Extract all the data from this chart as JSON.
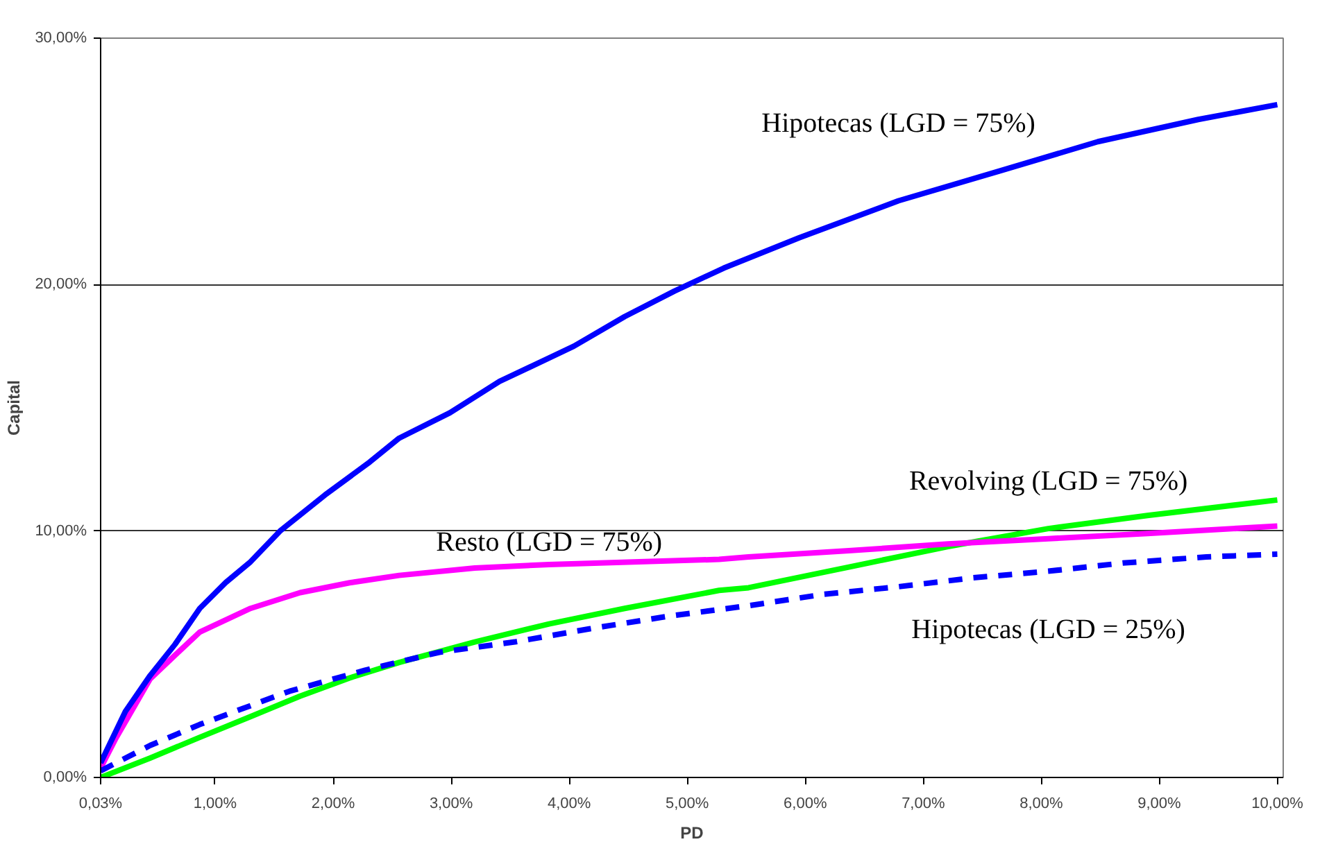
{
  "chart_data": {
    "type": "line",
    "xlabel": "PD",
    "ylabel": "Capital",
    "xlim": [
      0.03,
      10.05
    ],
    "ylim": [
      0,
      30
    ],
    "xticks": [
      {
        "value": 0.03,
        "label": "0,03%"
      },
      {
        "value": 1,
        "label": "1,00%"
      },
      {
        "value": 2,
        "label": "2,00%"
      },
      {
        "value": 3,
        "label": "3,00%"
      },
      {
        "value": 4,
        "label": "4,00%"
      },
      {
        "value": 5,
        "label": "5,00%"
      },
      {
        "value": 6,
        "label": "6,00%"
      },
      {
        "value": 7,
        "label": "7,00%"
      },
      {
        "value": 8,
        "label": "8,00%"
      },
      {
        "value": 9,
        "label": "9,00%"
      },
      {
        "value": 10,
        "label": "10,00%"
      }
    ],
    "yticks": [
      {
        "value": 0,
        "label": "0,00%"
      },
      {
        "value": 10,
        "label": "10,00%"
      },
      {
        "value": 20,
        "label": "20,00%"
      },
      {
        "value": 30,
        "label": "30,00%"
      }
    ],
    "grid": "y",
    "marker": "none",
    "series": [
      {
        "name": "Revolving (LGD = 75%)",
        "color": "#00ff00",
        "line_style": "solid",
        "x": [
          0.03,
          0.45,
          0.87,
          1.3,
          1.72,
          2.14,
          2.56,
          3.2,
          3.83,
          4.47,
          5.27,
          5.52,
          6.37,
          7.21,
          8.06,
          8.9,
          10.0
        ],
        "values": [
          0,
          0.79,
          1.63,
          2.47,
          3.3,
          4.04,
          4.67,
          5.5,
          6.23,
          6.86,
          7.59,
          7.7,
          8.54,
          9.37,
          10.1,
          10.63,
          11.26
        ]
      },
      {
        "name": "Resto (LGD = 75%)",
        "color": "#ff00ff",
        "line_style": "solid",
        "x": [
          0.03,
          0.16,
          0.45,
          0.66,
          0.87,
          1.3,
          1.72,
          2.14,
          2.56,
          3.2,
          3.83,
          5.27,
          5.52,
          6.37,
          7.21,
          8.06,
          8.9,
          10.0
        ],
        "values": [
          0.38,
          1.6,
          4.0,
          4.96,
          5.9,
          6.86,
          7.5,
          7.9,
          8.2,
          8.5,
          8.64,
          8.85,
          8.95,
          9.2,
          9.48,
          9.69,
          9.9,
          10.2
        ]
      },
      {
        "name": "Hipotecas (LGD = 75%)",
        "color": "#0000ff",
        "line_style": "solid",
        "x": [
          0.03,
          0.24,
          0.45,
          0.66,
          0.87,
          1.09,
          1.3,
          1.55,
          1.93,
          2.31,
          2.56,
          2.99,
          3.41,
          4.04,
          4.47,
          4.89,
          5.31,
          5.95,
          6.79,
          7.64,
          8.48,
          9.33,
          10.0
        ],
        "values": [
          0.59,
          2.68,
          4.14,
          5.4,
          6.86,
          7.91,
          8.75,
          10.0,
          11.46,
          12.8,
          13.77,
          14.8,
          16.07,
          17.5,
          18.7,
          19.73,
          20.67,
          21.9,
          23.4,
          24.6,
          25.8,
          26.7,
          27.3
        ]
      },
      {
        "name": "Hipotecas (LGD = 25%)",
        "color": "#0000ff",
        "line_style": "dashed",
        "x": [
          0.03,
          0.45,
          0.87,
          1.63,
          2.27,
          2.9,
          3.54,
          4.17,
          4.85,
          5.52,
          6.15,
          6.79,
          7.42,
          8.06,
          8.69,
          9.4,
          10.0
        ],
        "values": [
          0.27,
          1.3,
          2.15,
          3.5,
          4.35,
          5.08,
          5.5,
          6.03,
          6.55,
          6.97,
          7.43,
          7.74,
          8.1,
          8.37,
          8.7,
          8.95,
          9.06
        ]
      }
    ]
  }
}
